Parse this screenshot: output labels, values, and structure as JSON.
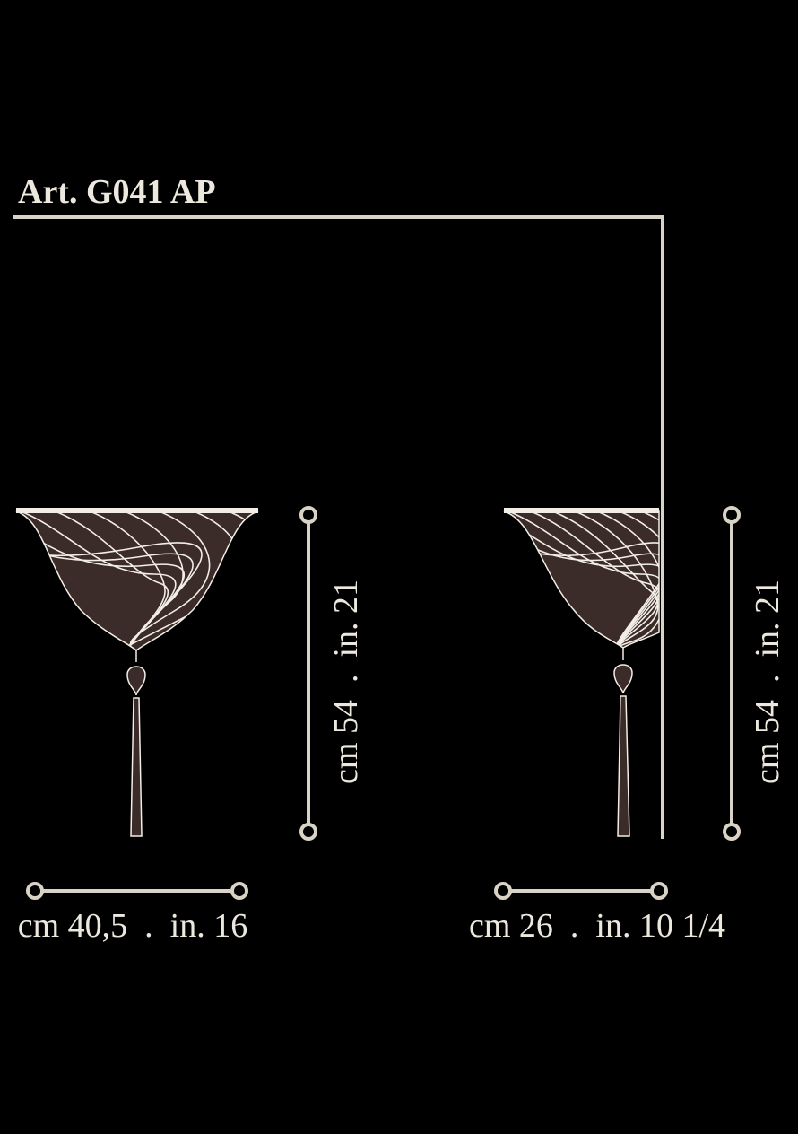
{
  "header": {
    "title": "Art. G041 AP"
  },
  "views": [
    {
      "height_label": "cm 54  .  in. 21",
      "width_label": "cm 40,5  .  in. 16"
    },
    {
      "height_label": "cm 54  .  in. 21",
      "width_label": "cm 26  .  in. 10 1/4"
    }
  ]
}
